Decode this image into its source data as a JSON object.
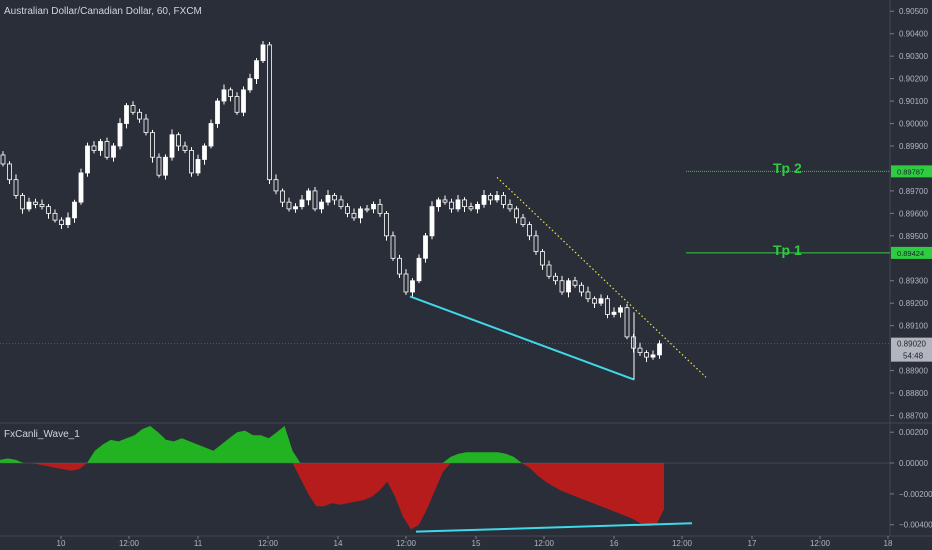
{
  "header": {
    "symbol_title": "Australian Dollar/Canadian Dollar, 60, FXCM"
  },
  "indicator": {
    "name": "FxCanli_Wave_1"
  },
  "price_axis": {
    "ticks": [
      "0.90500",
      "0.90400",
      "0.90300",
      "0.90200",
      "0.90100",
      "0.90000",
      "0.89900",
      "0.89700",
      "0.89600",
      "0.89500",
      "0.89300",
      "0.89200",
      "0.89100",
      "0.88900",
      "0.88800",
      "0.88700"
    ]
  },
  "indicator_axis": {
    "ticks": [
      "0.00200",
      "0.00000",
      "−0.00200",
      "−0.00400"
    ]
  },
  "time_axis": {
    "ticks": [
      "10",
      "12:00",
      "11",
      "12:00",
      "14",
      "12:00",
      "15",
      "12:00",
      "16",
      "12:00",
      "17",
      "12:00",
      "18"
    ]
  },
  "levels": {
    "tp2": {
      "label": "Tp 2",
      "price_tag": "0.89787"
    },
    "tp1": {
      "label": "Tp 1",
      "price_tag": "0.89424"
    }
  },
  "last_price": {
    "price": "0.89020",
    "countdown": "54:48"
  },
  "colors": {
    "background": "#2a2e39",
    "candle_up": "#ffffff",
    "candle_down": "#ffffff",
    "tp_line": "#2ecc40",
    "divergence_line": "#3fd8e8",
    "trend_line": "#f0e14a",
    "wave_positive": "#22b322",
    "wave_negative": "#b71c1c"
  },
  "chart_data": [
    {
      "type": "candlestick",
      "title": "Australian Dollar/Canadian Dollar, 60, FXCM",
      "ylim": [
        0.8868,
        0.9055
      ],
      "x_ticks": [
        "10",
        "12:00",
        "11",
        "12:00",
        "14",
        "12:00",
        "15",
        "12:00",
        "16",
        "12:00",
        "17",
        "12:00",
        "18"
      ],
      "close_path": [
        0.8982,
        0.8975,
        0.8968,
        0.8962,
        0.8965,
        0.8964,
        0.8963,
        0.896,
        0.8957,
        0.8955,
        0.8958,
        0.8965,
        0.8978,
        0.899,
        0.8988,
        0.8992,
        0.8985,
        0.899,
        0.9,
        0.9008,
        0.9005,
        0.9002,
        0.8996,
        0.8985,
        0.8977,
        0.8985,
        0.8995,
        0.899,
        0.8988,
        0.8978,
        0.8984,
        0.899,
        0.9,
        0.901,
        0.9015,
        0.9012,
        0.9005,
        0.9015,
        0.902,
        0.9028,
        0.9035,
        0.8975,
        0.897,
        0.8965,
        0.8962,
        0.8963,
        0.8966,
        0.897,
        0.8962,
        0.8965,
        0.8968,
        0.8966,
        0.8963,
        0.896,
        0.8958,
        0.8962,
        0.8962,
        0.8964,
        0.896,
        0.895,
        0.894,
        0.8933,
        0.8925,
        0.893,
        0.894,
        0.895,
        0.8963,
        0.8966,
        0.8965,
        0.8962,
        0.8966,
        0.8963,
        0.8962,
        0.8964,
        0.8968,
        0.8966,
        0.8968,
        0.8964,
        0.8962,
        0.8958,
        0.8955,
        0.895,
        0.8943,
        0.8937,
        0.8932,
        0.893,
        0.8925,
        0.893,
        0.8928,
        0.8925,
        0.8922,
        0.892,
        0.8922,
        0.8915,
        0.8916,
        0.8918,
        0.8905,
        0.89,
        0.8898,
        0.8896,
        0.8897,
        0.8902
      ],
      "levels": [
        {
          "name": "Tp 2",
          "value": 0.89787
        },
        {
          "name": "Tp 1",
          "value": 0.89424
        }
      ],
      "last_price": 0.8902,
      "trendlines": [
        {
          "from": [
            "15",
            0.8976
          ],
          "to": [
            "17",
            0.8887
          ]
        },
        {
          "from": [
            "14 12:00",
            0.8922
          ],
          "to": [
            "16",
            0.8886
          ]
        }
      ]
    },
    {
      "type": "area",
      "title": "FxCanli_Wave_1",
      "ylim": [
        -0.0046,
        0.0024
      ],
      "values": [
        0.0002,
        0.0003,
        0.0002,
        0.0,
        0.0,
        -0.0001,
        -0.0002,
        -0.0003,
        -0.0004,
        -0.0005,
        -0.0004,
        0.0,
        0.0008,
        0.0012,
        0.0015,
        0.0014,
        0.0016,
        0.0018,
        0.0022,
        0.0024,
        0.002,
        0.0015,
        0.0014,
        0.0016,
        0.0014,
        0.0012,
        0.001,
        0.0008,
        0.0012,
        0.0016,
        0.002,
        0.0021,
        0.0018,
        0.0018,
        0.0016,
        0.002,
        0.0024,
        0.0008,
        -0.001,
        -0.002,
        -0.0028,
        -0.0028,
        -0.0026,
        -0.0027,
        -0.0026,
        -0.0025,
        -0.0024,
        -0.0022,
        -0.0018,
        -0.0012,
        -0.0022,
        -0.0035,
        -0.0043,
        -0.004,
        -0.003,
        -0.0018,
        -0.0006,
        0.0004,
        0.0006,
        0.0007,
        0.0007,
        0.0007,
        0.0007,
        0.0007,
        0.0006,
        0.0004,
        0.0,
        -0.0003,
        -0.0008,
        -0.0012,
        -0.0015,
        -0.0018,
        -0.002,
        -0.0022,
        -0.0024,
        -0.0026,
        -0.0028,
        -0.003,
        -0.0032,
        -0.0034,
        -0.0036,
        -0.0039,
        -0.0041,
        -0.004,
        -0.003
      ],
      "trendlines": [
        {
          "from": [
            "14 12:00",
            -0.00445
          ],
          "to": [
            "16 12:00",
            -0.0039
          ]
        }
      ]
    }
  ]
}
